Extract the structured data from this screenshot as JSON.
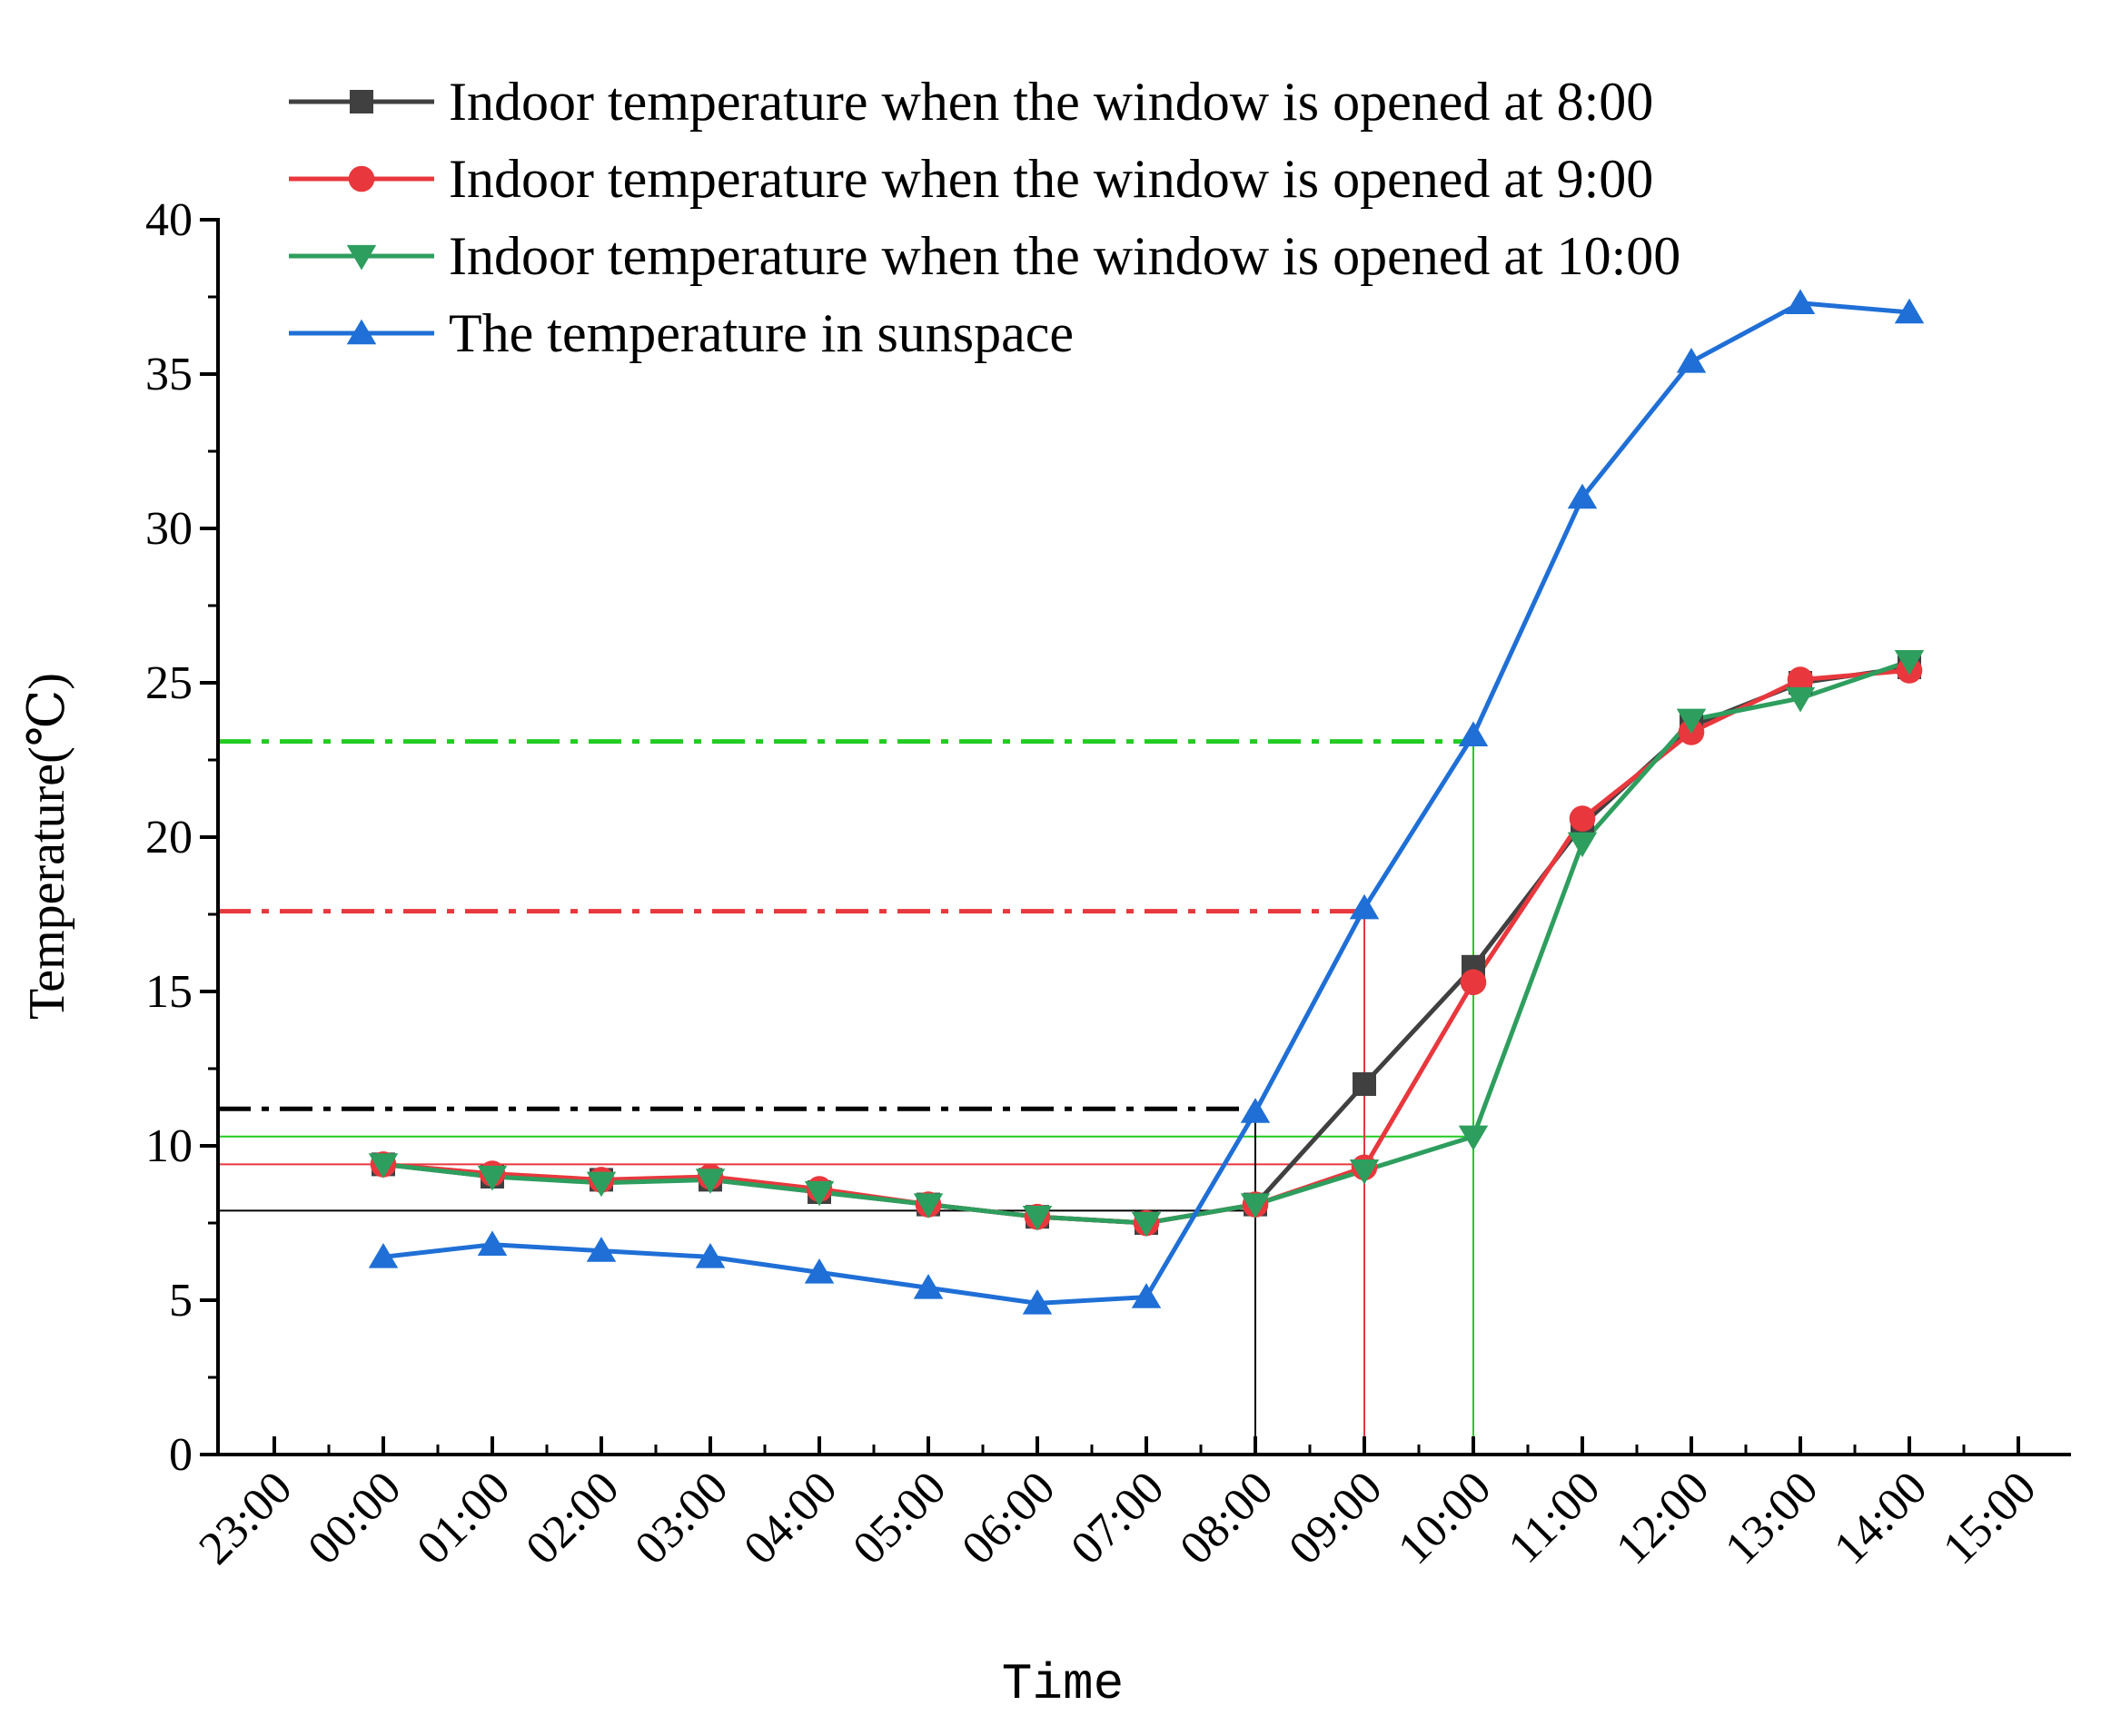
{
  "chart_data": {
    "type": "line",
    "title": "",
    "xlabel": "Time",
    "ylabel": "Temperature(℃)",
    "ylim": [
      0,
      40
    ],
    "yticks": [
      0,
      5,
      10,
      15,
      20,
      25,
      30,
      35,
      40
    ],
    "categories": [
      "23:00",
      "00:00",
      "01:00",
      "02:00",
      "03:00",
      "04:00",
      "05:00",
      "06:00",
      "07:00",
      "08:00",
      "09:00",
      "10:00",
      "11:00",
      "12:00",
      "13:00",
      "14:00",
      "15:00"
    ],
    "grid": false,
    "legend_position": "top-left",
    "series": [
      {
        "name": "Indoor temperature when the window is opened at 8:00",
        "color": "#404040",
        "marker": "square",
        "x": [
          "00:00",
          "01:00",
          "02:00",
          "03:00",
          "04:00",
          "05:00",
          "06:00",
          "07:00",
          "08:00",
          "09:00",
          "10:00",
          "11:00",
          "12:00",
          "13:00",
          "14:00"
        ],
        "values": [
          9.4,
          9.0,
          8.9,
          8.9,
          8.5,
          8.1,
          7.7,
          7.5,
          8.1,
          12.0,
          15.8,
          20.4,
          23.6,
          25.0,
          25.5
        ]
      },
      {
        "name": "Indoor temperature when the window is opened at 9:00",
        "color": "#e8383d",
        "marker": "circle",
        "x": [
          "00:00",
          "01:00",
          "02:00",
          "03:00",
          "04:00",
          "05:00",
          "06:00",
          "07:00",
          "08:00",
          "09:00",
          "10:00",
          "11:00",
          "12:00",
          "13:00",
          "14:00"
        ],
        "values": [
          9.4,
          9.1,
          8.9,
          9.0,
          8.6,
          8.1,
          7.7,
          7.5,
          8.1,
          9.3,
          15.3,
          20.6,
          23.4,
          25.1,
          25.4
        ]
      },
      {
        "name": "Indoor temperature when the window is opened at 10:00",
        "color": "#2e9e5e",
        "marker": "triangle-down",
        "x": [
          "00:00",
          "01:00",
          "02:00",
          "03:00",
          "04:00",
          "05:00",
          "06:00",
          "07:00",
          "08:00",
          "09:00",
          "10:00",
          "11:00",
          "12:00",
          "13:00",
          "14:00"
        ],
        "values": [
          9.4,
          9.0,
          8.8,
          8.9,
          8.5,
          8.1,
          7.7,
          7.5,
          8.1,
          9.2,
          10.3,
          19.8,
          23.8,
          24.5,
          25.7
        ]
      },
      {
        "name": "The temperature in sunspace",
        "color": "#1f6fd6",
        "marker": "triangle-up",
        "x": [
          "00:00",
          "01:00",
          "02:00",
          "03:00",
          "04:00",
          "05:00",
          "06:00",
          "07:00",
          "08:00",
          "09:00",
          "10:00",
          "11:00",
          "12:00",
          "13:00",
          "14:00"
        ],
        "values": [
          6.4,
          6.8,
          6.6,
          6.4,
          5.9,
          5.4,
          4.9,
          5.1,
          11.1,
          17.7,
          23.3,
          31.0,
          35.4,
          37.3,
          37.0
        ]
      }
    ],
    "reference_lines": [
      {
        "orientation": "horizontal",
        "y": 11.2,
        "x_end": "08:00",
        "style": "dashdot",
        "color": "#000000"
      },
      {
        "orientation": "horizontal",
        "y": 17.6,
        "x_end": "09:00",
        "style": "dashdot",
        "color": "#e8383d"
      },
      {
        "orientation": "horizontal",
        "y": 23.1,
        "x_end": "10:00",
        "style": "dashdot",
        "color": "#22cc22"
      },
      {
        "orientation": "horizontal",
        "y": 7.9,
        "x_end": "08:00",
        "style": "solid",
        "color": "#000000"
      },
      {
        "orientation": "horizontal",
        "y": 9.4,
        "x_end": "09:00",
        "style": "solid",
        "color": "#e8383d"
      },
      {
        "orientation": "horizontal",
        "y": 10.3,
        "x_end": "10:00",
        "style": "solid",
        "color": "#22cc22"
      },
      {
        "orientation": "vertical",
        "x": "08:00",
        "y_top": 11.1,
        "style": "solid",
        "color": "#000000"
      },
      {
        "orientation": "vertical",
        "x": "09:00",
        "y_top": 17.7,
        "style": "solid",
        "color": "#e8383d"
      },
      {
        "orientation": "vertical",
        "x": "10:00",
        "y_top": 23.3,
        "style": "solid",
        "color": "#22cc22"
      }
    ]
  }
}
